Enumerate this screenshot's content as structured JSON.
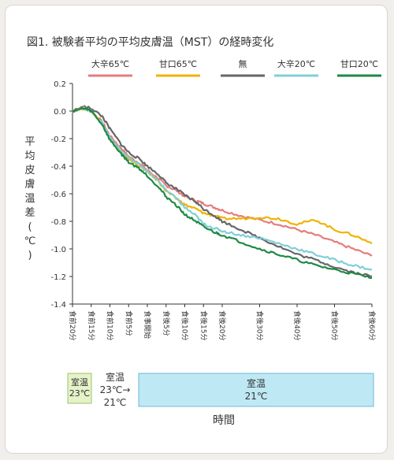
{
  "chart_data": {
    "type": "line",
    "title": "図1. 被験者平均の平均皮膚温（MST）の経時変化",
    "ylabel": "平均皮膚温差(℃)",
    "xlabel": "時間",
    "ylim": [
      -1.4,
      0.2
    ],
    "yticks": [
      0.2,
      0.0,
      -0.2,
      -0.4,
      -0.6,
      -0.8,
      -1.0,
      -1.2,
      -1.4
    ],
    "x_categories": [
      "食前20分",
      "食前15分",
      "食前10分",
      "食前5分",
      "食事開始",
      "食後5分",
      "食後10分",
      "食後15分",
      "食後20分",
      "食後30分",
      "食後40分",
      "食後50分",
      "食後60分"
    ],
    "x_minutes": [
      -20,
      -15,
      -10,
      -5,
      0,
      5,
      10,
      15,
      20,
      30,
      40,
      50,
      60
    ],
    "legend_position": "top",
    "grid": false,
    "series": [
      {
        "name": "大辛65℃",
        "color": "#e57c7c",
        "x": [
          -20,
          -17,
          -15,
          -12,
          -10,
          -7,
          -5,
          -2,
          0,
          3,
          5,
          8,
          10,
          13,
          15,
          18,
          20,
          25,
          30,
          35,
          40,
          45,
          50,
          55,
          60
        ],
        "y": [
          0.0,
          0.03,
          0.0,
          -0.08,
          -0.18,
          -0.27,
          -0.33,
          -0.38,
          -0.43,
          -0.49,
          -0.54,
          -0.58,
          -0.62,
          -0.65,
          -0.67,
          -0.7,
          -0.72,
          -0.76,
          -0.79,
          -0.82,
          -0.86,
          -0.9,
          -0.95,
          -1.0,
          -1.05
        ]
      },
      {
        "name": "甘口65℃",
        "color": "#efb300",
        "x": [
          -20,
          -17,
          -15,
          -12,
          -10,
          -7,
          -5,
          -2,
          0,
          3,
          5,
          8,
          10,
          13,
          15,
          18,
          20,
          25,
          30,
          35,
          40,
          45,
          50,
          55,
          60
        ],
        "y": [
          0.0,
          0.02,
          0.0,
          -0.09,
          -0.2,
          -0.3,
          -0.35,
          -0.4,
          -0.44,
          -0.51,
          -0.58,
          -0.64,
          -0.68,
          -0.71,
          -0.74,
          -0.76,
          -0.78,
          -0.78,
          -0.77,
          -0.78,
          -0.82,
          -0.79,
          -0.86,
          -0.9,
          -0.96
        ]
      },
      {
        "name": "無",
        "color": "#666666",
        "x": [
          -20,
          -17,
          -15,
          -12,
          -10,
          -7,
          -5,
          -2,
          0,
          3,
          5,
          8,
          10,
          13,
          15,
          18,
          20,
          25,
          30,
          35,
          40,
          45,
          50,
          55,
          60
        ],
        "y": [
          0.0,
          0.03,
          0.02,
          -0.04,
          -0.13,
          -0.24,
          -0.3,
          -0.35,
          -0.4,
          -0.46,
          -0.52,
          -0.57,
          -0.61,
          -0.66,
          -0.71,
          -0.76,
          -0.8,
          -0.86,
          -0.92,
          -0.98,
          -1.04,
          -1.08,
          -1.13,
          -1.17,
          -1.2
        ]
      },
      {
        "name": "大辛20℃",
        "color": "#7fcfd8",
        "x": [
          -20,
          -17,
          -15,
          -12,
          -10,
          -7,
          -5,
          -2,
          0,
          3,
          5,
          8,
          10,
          13,
          15,
          18,
          20,
          25,
          30,
          35,
          40,
          45,
          50,
          55,
          60
        ],
        "y": [
          0.0,
          0.02,
          0.0,
          -0.09,
          -0.19,
          -0.29,
          -0.34,
          -0.39,
          -0.44,
          -0.51,
          -0.57,
          -0.64,
          -0.7,
          -0.76,
          -0.82,
          -0.85,
          -0.87,
          -0.9,
          -0.92,
          -0.96,
          -1.0,
          -1.04,
          -1.08,
          -1.12,
          -1.15
        ]
      },
      {
        "name": "甘口20℃",
        "color": "#1e8a44",
        "x": [
          -20,
          -17,
          -15,
          -12,
          -10,
          -7,
          -5,
          -2,
          0,
          3,
          5,
          8,
          10,
          13,
          15,
          18,
          20,
          25,
          30,
          35,
          40,
          45,
          50,
          55,
          60
        ],
        "y": [
          0.0,
          0.02,
          0.0,
          -0.1,
          -0.21,
          -0.31,
          -0.37,
          -0.42,
          -0.47,
          -0.55,
          -0.62,
          -0.69,
          -0.75,
          -0.8,
          -0.84,
          -0.88,
          -0.9,
          -0.95,
          -1.0,
          -1.04,
          -1.08,
          -1.12,
          -1.15,
          -1.18,
          -1.21
        ]
      }
    ],
    "room_temp": [
      {
        "label": "室温\n23℃"
      },
      {
        "label": "室温\n23℃→\n21℃"
      },
      {
        "label": "室温\n21℃"
      }
    ]
  }
}
